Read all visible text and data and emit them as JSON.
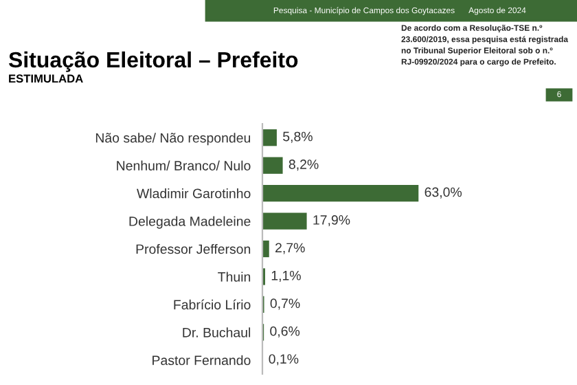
{
  "chart_data": {
    "type": "bar",
    "orientation": "horizontal",
    "relative": false,
    "title": "Situação Eleitoral – Prefeito",
    "subtitle": "ESTIMULADA",
    "categories": [
      "Não sabe/ Não respondeu",
      "Nenhum/ Branco/ Nulo",
      "Wladimir Garotinho",
      "Delegada Madeleine",
      "Professor Jefferson",
      "Thuin",
      "Fabrício Lírio",
      "Dr. Buchaul",
      "Pastor Fernando"
    ],
    "values": [
      5.8,
      8.2,
      63.0,
      17.9,
      2.7,
      1.1,
      0.7,
      0.6,
      0.1
    ],
    "value_labels": [
      "5,8%",
      "8,2%",
      "63,0%",
      "17,9%",
      "2,7%",
      "1,1%",
      "0,7%",
      "0,6%",
      "0,1%"
    ],
    "color": "#3d6b35",
    "grid": false,
    "annotations": [
      "Pesquisa - Município de Campos dos Goytacazes",
      "Agosto de 2024",
      "De acordo com a Resolução-TSE n.º 23.600/2019, essa pesquisa está registrada no Tribunal Superior Eleitoral sob o n.º RJ-09920/2024 para o cargo de Prefeito.",
      "6"
    ]
  }
}
